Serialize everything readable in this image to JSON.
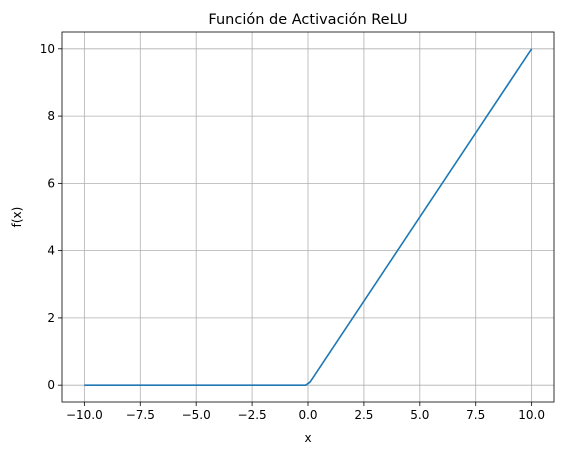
{
  "chart_data": {
    "type": "line",
    "title": "Función de Activación ReLU",
    "xlabel": "x",
    "ylabel": "f(x)",
    "xlim": [
      -11,
      11
    ],
    "ylim": [
      -0.5,
      10.5
    ],
    "xticks": [
      -10,
      -7.5,
      -5,
      -2.5,
      0,
      2.5,
      5,
      7.5,
      10
    ],
    "xtick_labels": [
      "−10.0",
      "−7.5",
      "−5.0",
      "−2.5",
      "0.0",
      "2.5",
      "5.0",
      "7.5",
      "10.0"
    ],
    "yticks": [
      0,
      2,
      4,
      6,
      8,
      10
    ],
    "ytick_labels": [
      "0",
      "2",
      "4",
      "6",
      "8",
      "10"
    ],
    "grid": true,
    "series": [
      {
        "color": "#1f77b4",
        "x": [
          -10,
          -0.1,
          0.1,
          10
        ],
        "y": [
          0,
          0,
          0.1,
          10
        ]
      }
    ]
  }
}
